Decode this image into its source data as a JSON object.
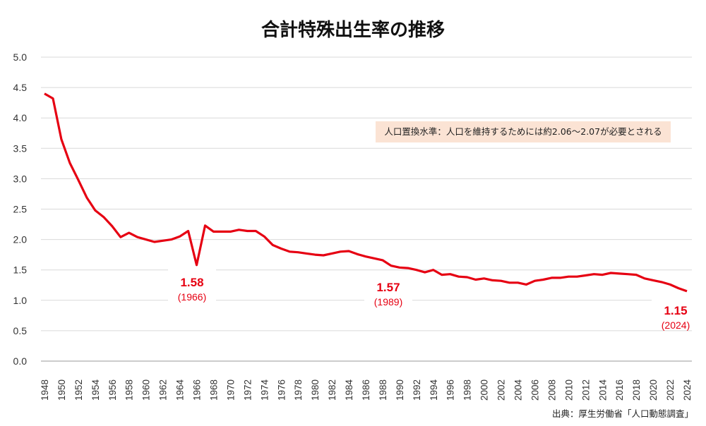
{
  "title": "合計特殊出生率の推移",
  "note": "人口置換水準：人口を維持するためには約2.06〜2.07が必要とされる",
  "source": "出典：厚生労働省「人口動態調査」",
  "chart_data": {
    "type": "line",
    "title": "合計特殊出生率の推移",
    "xlabel": "",
    "ylabel": "",
    "ylim": [
      0,
      5
    ],
    "yticks": [
      "0.0",
      "0.5",
      "1.0",
      "1.5",
      "2.0",
      "2.5",
      "3.0",
      "3.5",
      "4.0",
      "4.5",
      "5.0"
    ],
    "xlim": [
      1948,
      2024
    ],
    "xtick_step": 2,
    "grid": "horizontal",
    "line_color": "#e60012",
    "x": [
      1948,
      1949,
      1950,
      1951,
      1952,
      1953,
      1954,
      1955,
      1956,
      1957,
      1958,
      1959,
      1960,
      1961,
      1962,
      1963,
      1964,
      1965,
      1966,
      1967,
      1968,
      1969,
      1970,
      1971,
      1972,
      1973,
      1974,
      1975,
      1976,
      1977,
      1978,
      1979,
      1980,
      1981,
      1982,
      1983,
      1984,
      1985,
      1986,
      1987,
      1988,
      1989,
      1990,
      1991,
      1992,
      1993,
      1994,
      1995,
      1996,
      1997,
      1998,
      1999,
      2000,
      2001,
      2002,
      2003,
      2004,
      2005,
      2006,
      2007,
      2008,
      2009,
      2010,
      2011,
      2012,
      2013,
      2014,
      2015,
      2016,
      2017,
      2018,
      2019,
      2020,
      2021,
      2022,
      2023,
      2024
    ],
    "values": [
      4.4,
      4.32,
      3.65,
      3.26,
      2.98,
      2.69,
      2.48,
      2.37,
      2.22,
      2.04,
      2.11,
      2.04,
      2.0,
      1.96,
      1.98,
      2.0,
      2.05,
      2.14,
      1.58,
      2.23,
      2.13,
      2.13,
      2.13,
      2.16,
      2.14,
      2.14,
      2.05,
      1.91,
      1.85,
      1.8,
      1.79,
      1.77,
      1.75,
      1.74,
      1.77,
      1.8,
      1.81,
      1.76,
      1.72,
      1.69,
      1.66,
      1.57,
      1.54,
      1.53,
      1.5,
      1.46,
      1.5,
      1.42,
      1.43,
      1.39,
      1.38,
      1.34,
      1.36,
      1.33,
      1.32,
      1.29,
      1.29,
      1.26,
      1.32,
      1.34,
      1.37,
      1.37,
      1.39,
      1.39,
      1.41,
      1.43,
      1.42,
      1.45,
      1.44,
      1.43,
      1.42,
      1.36,
      1.33,
      1.3,
      1.26,
      1.2,
      1.15
    ],
    "annotations": [
      {
        "value": "1.58",
        "year": "(1966)"
      },
      {
        "value": "1.57",
        "year": "(1989)"
      },
      {
        "value": "1.15",
        "year": "(2024)"
      }
    ]
  }
}
